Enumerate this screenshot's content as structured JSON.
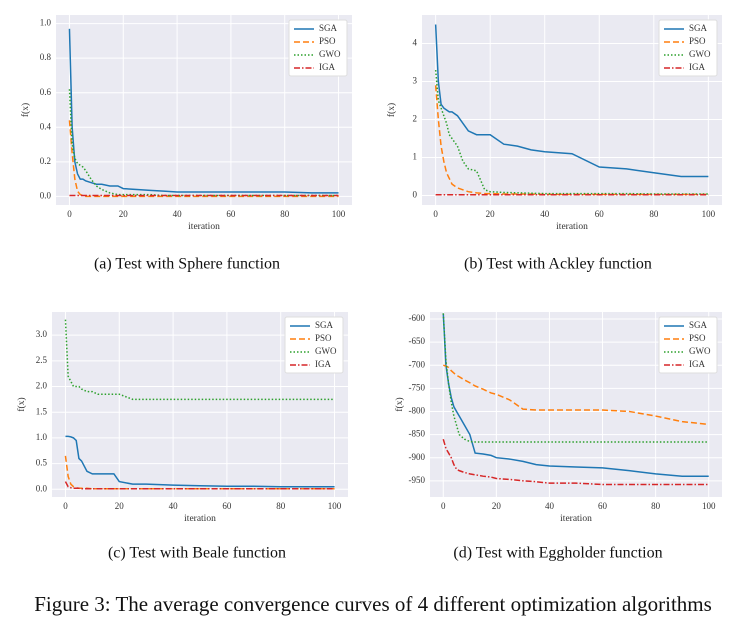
{
  "caption": "Figure 3: The average convergence curves of 4 different optimization algorithms",
  "chart_data": [
    {
      "type": "line",
      "caption": "(a)  Test with Sphere function",
      "xlabel": "iteration",
      "ylabel": "f(x)",
      "x": [
        0,
        1,
        2,
        3,
        4,
        5,
        6,
        8,
        10,
        12,
        15,
        18,
        20,
        25,
        30,
        35,
        40,
        50,
        60,
        70,
        80,
        90,
        100
      ],
      "xlim": [
        -5,
        105
      ],
      "xticks": [
        0,
        20,
        40,
        60,
        80,
        100
      ],
      "ylim": [
        -0.05,
        1.05
      ],
      "yticks": [
        {
          "value": 0,
          "label": "0.0"
        },
        0.2,
        0.4,
        0.6,
        0.8,
        {
          "value": 1,
          "label": "1.0"
        }
      ],
      "grid": true,
      "legend": "upper right",
      "series": [
        {
          "name": "SGA",
          "color": "#1f77b4",
          "dash": "solid",
          "values": [
            0.97,
            0.4,
            0.2,
            0.13,
            0.1,
            0.1,
            0.09,
            0.08,
            0.07,
            0.07,
            0.06,
            0.06,
            0.045,
            0.04,
            0.035,
            0.03,
            0.025,
            0.025,
            0.025,
            0.025,
            0.025,
            0.02,
            0.02
          ]
        },
        {
          "name": "PSO",
          "color": "#ff7f0e",
          "dash": "dashed",
          "values": [
            0.44,
            0.25,
            0.1,
            0.03,
            0.01,
            0.005,
            0,
            0,
            0,
            0,
            0,
            0,
            0,
            0,
            0,
            0,
            0,
            0,
            0,
            0,
            0,
            0,
            0
          ]
        },
        {
          "name": "GWO",
          "color": "#2ca02c",
          "dash": "dotted",
          "values": [
            0.62,
            0.3,
            0.22,
            0.19,
            0.18,
            0.17,
            0.15,
            0.1,
            0.06,
            0.04,
            0.02,
            0.01,
            0.01,
            0.01,
            0.01,
            0.005,
            0.005,
            0.005,
            0.005,
            0.005,
            0.005,
            0.005,
            0.005
          ]
        },
        {
          "name": "IGA",
          "color": "#d62728",
          "dash": "dashdot",
          "values": [
            0.005,
            0.005,
            0.005,
            0.005,
            0.005,
            0.005,
            0.005,
            0.005,
            0.005,
            0.005,
            0.005,
            0.005,
            0.005,
            0.005,
            0.005,
            0.005,
            0.005,
            0.005,
            0.005,
            0.005,
            0.005,
            0.005,
            0.005
          ]
        }
      ]
    },
    {
      "type": "line",
      "caption": "(b)  Test with Ackley function",
      "xlabel": "iteration",
      "ylabel": "f(x)",
      "x": [
        0,
        1,
        2,
        3,
        4,
        5,
        6,
        8,
        10,
        12,
        15,
        18,
        20,
        25,
        30,
        35,
        40,
        50,
        60,
        70,
        80,
        90,
        100
      ],
      "xlim": [
        -5,
        105
      ],
      "xticks": [
        0,
        20,
        40,
        60,
        80,
        100
      ],
      "ylim": [
        -0.25,
        4.75
      ],
      "yticks": [
        0,
        1,
        2,
        3,
        4
      ],
      "grid": true,
      "legend": "upper right",
      "series": [
        {
          "name": "SGA",
          "color": "#1f77b4",
          "dash": "solid",
          "values": [
            4.5,
            3.0,
            2.4,
            2.3,
            2.25,
            2.2,
            2.2,
            2.1,
            1.9,
            1.7,
            1.6,
            1.6,
            1.6,
            1.35,
            1.3,
            1.2,
            1.15,
            1.1,
            0.75,
            0.7,
            0.6,
            0.5,
            0.5
          ]
        },
        {
          "name": "PSO",
          "color": "#ff7f0e",
          "dash": "dashed",
          "values": [
            2.9,
            2.0,
            1.3,
            0.9,
            0.6,
            0.45,
            0.3,
            0.2,
            0.15,
            0.1,
            0.07,
            0.05,
            0.05,
            0.04,
            0.04,
            0.04,
            0.03,
            0.03,
            0.03,
            0.03,
            0.03,
            0.03,
            0.03
          ]
        },
        {
          "name": "GWO",
          "color": "#2ca02c",
          "dash": "dotted",
          "values": [
            3.3,
            2.5,
            2.3,
            2.1,
            1.9,
            1.6,
            1.5,
            1.3,
            0.9,
            0.7,
            0.65,
            0.15,
            0.1,
            0.08,
            0.07,
            0.06,
            0.05,
            0.05,
            0.05,
            0.05,
            0.04,
            0.04,
            0.04
          ]
        },
        {
          "name": "IGA",
          "color": "#d62728",
          "dash": "dashdot",
          "values": [
            0.02,
            0.02,
            0.02,
            0.02,
            0.02,
            0.02,
            0.02,
            0.02,
            0.02,
            0.02,
            0.02,
            0.02,
            0.02,
            0.02,
            0.02,
            0.02,
            0.02,
            0.02,
            0.02,
            0.02,
            0.02,
            0.02,
            0.02
          ]
        }
      ]
    },
    {
      "type": "line",
      "caption": "(c)  Test with Beale function",
      "xlabel": "iteration",
      "ylabel": "f(x)",
      "x": [
        0,
        1,
        2,
        3,
        4,
        5,
        6,
        8,
        10,
        12,
        15,
        18,
        20,
        25,
        30,
        35,
        40,
        50,
        60,
        70,
        80,
        90,
        100
      ],
      "xlim": [
        -5,
        105
      ],
      "xticks": [
        0,
        20,
        40,
        60,
        80,
        100
      ],
      "ylim": [
        -0.15,
        3.45
      ],
      "yticks": [
        {
          "value": 0,
          "label": "0.0"
        },
        0.5,
        {
          "value": 1,
          "label": "1.0"
        },
        1.5,
        {
          "value": 2,
          "label": "2.0"
        },
        2.5,
        {
          "value": 3,
          "label": "3.0"
        }
      ],
      "grid": true,
      "legend": "upper right",
      "series": [
        {
          "name": "SGA",
          "color": "#1f77b4",
          "dash": "solid",
          "values": [
            1.03,
            1.03,
            1.02,
            1.0,
            0.95,
            0.6,
            0.55,
            0.35,
            0.3,
            0.3,
            0.3,
            0.3,
            0.15,
            0.1,
            0.1,
            0.09,
            0.08,
            0.07,
            0.06,
            0.06,
            0.05,
            0.05,
            0.05
          ]
        },
        {
          "name": "PSO",
          "color": "#ff7f0e",
          "dash": "dashed",
          "values": [
            0.65,
            0.25,
            0.1,
            0.05,
            0.03,
            0.02,
            0.02,
            0.02,
            0.01,
            0.01,
            0.01,
            0.01,
            0.01,
            0.01,
            0.01,
            0.01,
            0.01,
            0.01,
            0.01,
            0.01,
            0.01,
            0.01,
            0.01
          ]
        },
        {
          "name": "GWO",
          "color": "#2ca02c",
          "dash": "dotted",
          "values": [
            3.3,
            2.2,
            2.1,
            2.0,
            2.0,
            2.0,
            1.95,
            1.9,
            1.9,
            1.85,
            1.85,
            1.85,
            1.85,
            1.75,
            1.75,
            1.75,
            1.75,
            1.75,
            1.75,
            1.75,
            1.75,
            1.75,
            1.75
          ]
        },
        {
          "name": "IGA",
          "color": "#d62728",
          "dash": "dashdot",
          "values": [
            0.15,
            0.05,
            0.03,
            0.02,
            0.02,
            0.02,
            0.01,
            0.01,
            0.01,
            0.01,
            0.01,
            0.01,
            0.01,
            0.01,
            0.01,
            0.01,
            0.01,
            0.01,
            0.01,
            0.01,
            0.01,
            0.01,
            0.01
          ]
        }
      ]
    },
    {
      "type": "line",
      "caption": "(d)  Test with Eggholder function",
      "xlabel": "iteration",
      "ylabel": "f(x)",
      "x": [
        0,
        1,
        2,
        3,
        4,
        5,
        6,
        8,
        10,
        12,
        15,
        18,
        20,
        25,
        30,
        35,
        40,
        50,
        60,
        70,
        80,
        90,
        100
      ],
      "xlim": [
        -5,
        105
      ],
      "xticks": [
        0,
        20,
        40,
        60,
        80,
        100
      ],
      "ylim": [
        -985,
        -585
      ],
      "yticks": [
        -950,
        -900,
        -850,
        -800,
        -750,
        -700,
        -650,
        -600
      ],
      "grid": true,
      "legend": "upper right",
      "series": [
        {
          "name": "SGA",
          "color": "#1f77b4",
          "dash": "solid",
          "values": [
            -588,
            -700,
            -740,
            -770,
            -790,
            -800,
            -810,
            -830,
            -850,
            -890,
            -892,
            -895,
            -900,
            -903,
            -908,
            -915,
            -918,
            -920,
            -922,
            -928,
            -935,
            -940,
            -940
          ]
        },
        {
          "name": "PSO",
          "color": "#ff7f0e",
          "dash": "dashed",
          "values": [
            -700,
            -702,
            -705,
            -712,
            -717,
            -722,
            -725,
            -732,
            -738,
            -745,
            -752,
            -760,
            -763,
            -775,
            -795,
            -797,
            -797,
            -797,
            -797,
            -800,
            -810,
            -822,
            -828
          ]
        },
        {
          "name": "GWO",
          "color": "#2ca02c",
          "dash": "dotted",
          "values": [
            -588,
            -690,
            -740,
            -780,
            -810,
            -830,
            -850,
            -860,
            -865,
            -866,
            -866,
            -866,
            -866,
            -866,
            -866,
            -866,
            -866,
            -866,
            -866,
            -866,
            -866,
            -866,
            -866
          ]
        },
        {
          "name": "IGA",
          "color": "#d62728",
          "dash": "dashdot",
          "values": [
            -860,
            -880,
            -890,
            -900,
            -915,
            -925,
            -928,
            -932,
            -935,
            -937,
            -940,
            -942,
            -945,
            -947,
            -950,
            -952,
            -955,
            -955,
            -958,
            -958,
            -958,
            -958,
            -958
          ]
        }
      ]
    }
  ]
}
